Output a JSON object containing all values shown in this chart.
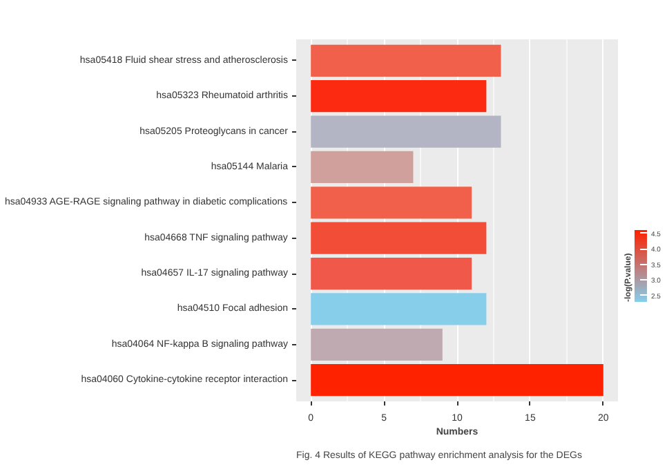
{
  "chart_data": {
    "type": "bar",
    "orientation": "horizontal",
    "categories": [
      "hsa05418 Fluid shear stress and atherosclerosis",
      "hsa05323 Rheumatoid arthritis",
      "hsa05205 Proteoglycans in cancer",
      "hsa05144 Malaria",
      "hsa04933 AGE-RAGE signaling pathway in diabetic complications",
      "hsa04668 TNF signaling pathway",
      "hsa04657 IL-17 signaling pathway",
      "hsa04510 Focal adhesion",
      "hsa04064 NF-kappa B signaling pathway",
      "hsa04060 Cytokine-cytokine receptor interaction"
    ],
    "values": [
      13,
      12,
      13,
      7,
      11,
      12,
      11,
      12,
      9,
      20
    ],
    "colors": [
      "#f0604a",
      "#fb2a10",
      "#b4b5c4",
      "#cfa09c",
      "#f0604a",
      "#f24e37",
      "#f0584a",
      "#87ceeb",
      "#bfaab1",
      "#ff2200"
    ],
    "xlabel": "Numbers",
    "xlim": [
      -1,
      21
    ],
    "xticks": [
      0,
      5,
      10,
      15,
      20
    ],
    "grid": "x",
    "clabel": "-log(P.value)",
    "clim": [
      2.3,
      4.6
    ],
    "cticks": [
      2.5,
      {
        "value": 3,
        "label": "3.0"
      },
      3.5,
      {
        "value": 4,
        "label": "4.0"
      },
      4.5
    ],
    "annotations": [
      "Fig. 4 Results of KEGG pathway enrichment analysis for the DEGs"
    ]
  }
}
